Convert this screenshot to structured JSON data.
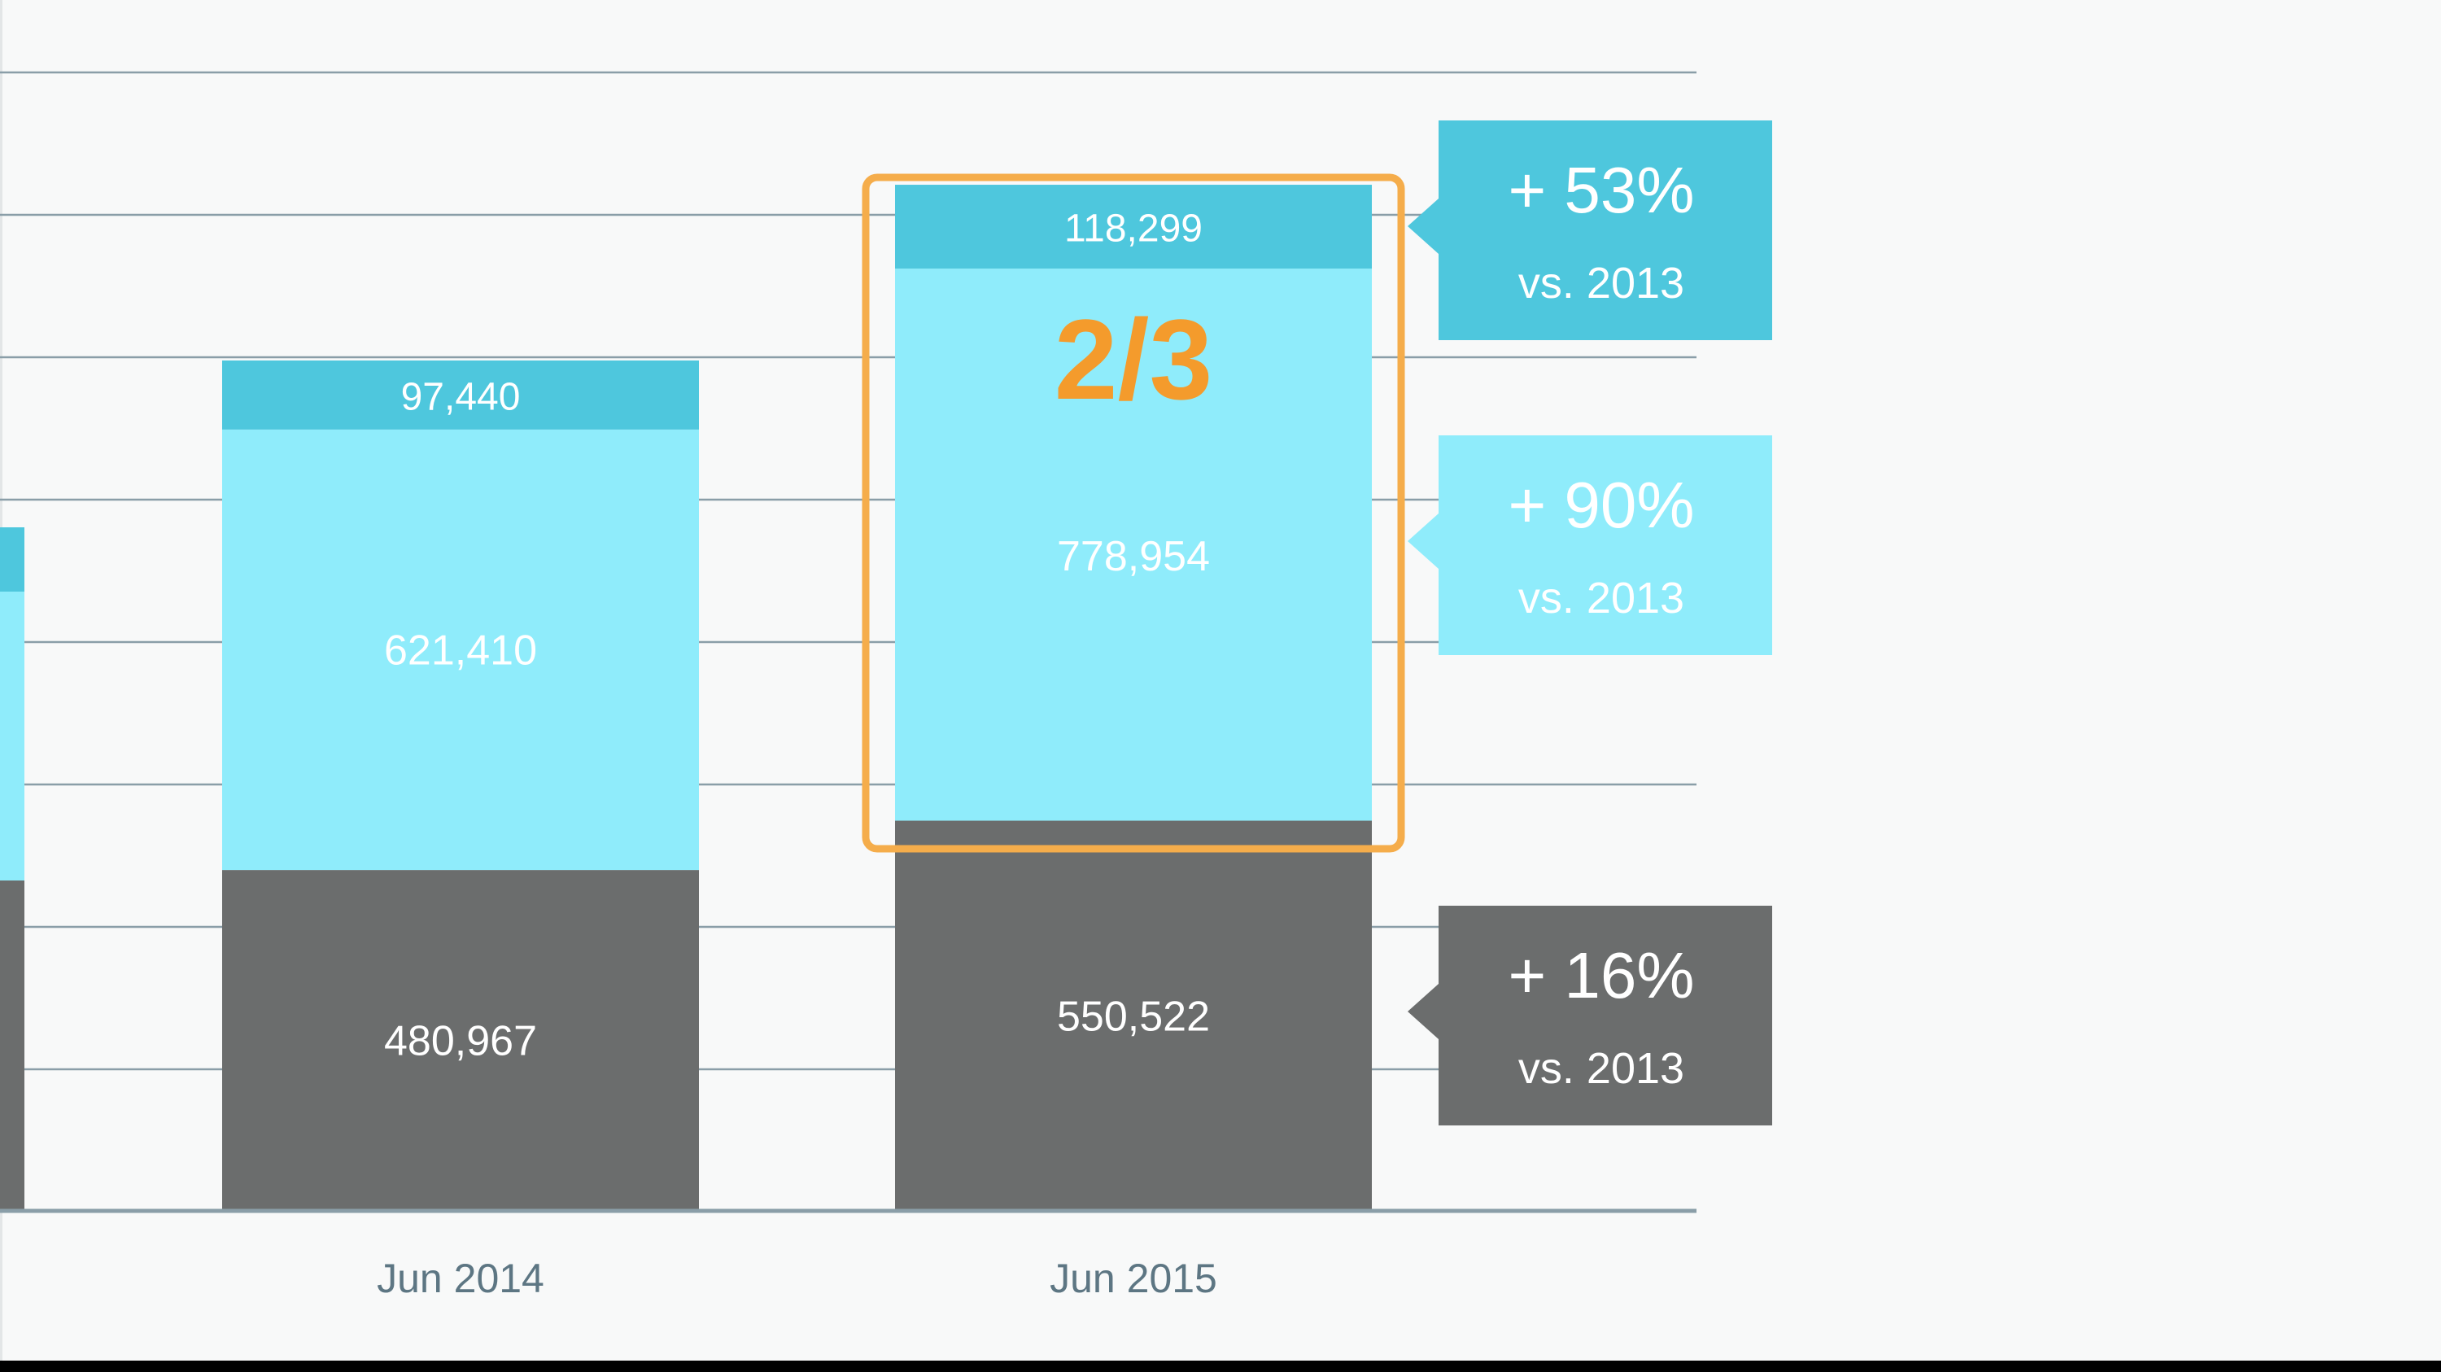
{
  "chart_data": {
    "type": "bar",
    "stacked": true,
    "categories": [
      "Jun 2014",
      "Jun 2015"
    ],
    "series": [
      {
        "values": [
          480967,
          550522
        ],
        "labels": [
          "480,967",
          "550,522"
        ],
        "color": "#6b6d6d"
      },
      {
        "values": [
          621410,
          778954
        ],
        "labels": [
          "621,410",
          "778,954"
        ],
        "color": "#8fecfb"
      },
      {
        "values": [
          97440,
          118299
        ],
        "labels": [
          "97,440",
          "118,299"
        ],
        "color": "#4ec7dd"
      }
    ],
    "grid": true,
    "highlight": {
      "category": "Jun 2015",
      "label": "2/3",
      "color": "#f5ad4b"
    },
    "callouts": [
      {
        "change": "+ 53%",
        "comparison": "vs. 2013",
        "color": "#4ec7dd"
      },
      {
        "change": "+ 90%",
        "comparison": "vs. 2013",
        "color": "#8fecfb"
      },
      {
        "change": "+ 16%",
        "comparison": "vs. 2013",
        "color": "#6b6d6d"
      }
    ],
    "colors": {
      "background": "#f8f9f9",
      "grid": "#8a9ea8",
      "axis_label": "#5d7683",
      "bar_text": "#ffffff",
      "highlight_text": "#f49b2c"
    }
  }
}
